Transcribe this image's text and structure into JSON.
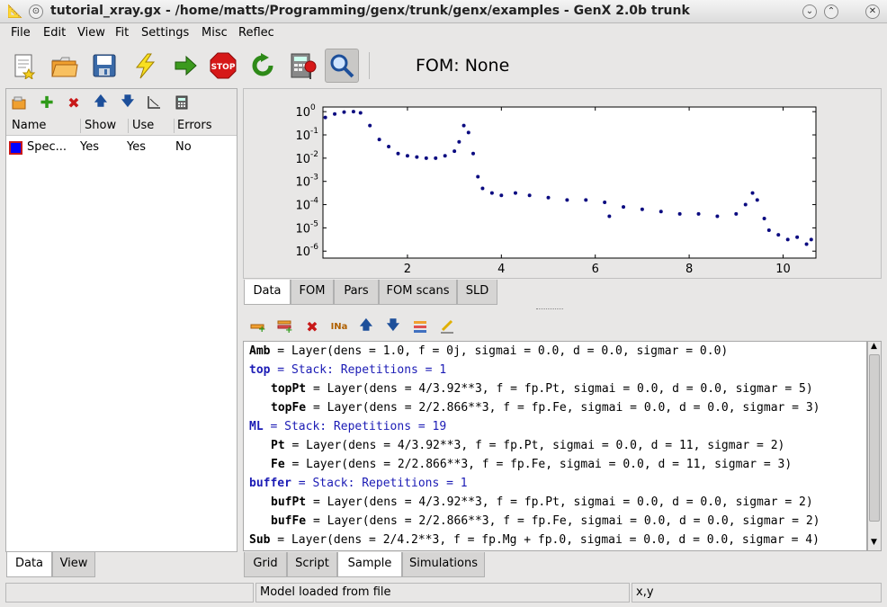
{
  "window": {
    "title": "tutorial_xray.gx - /home/matts/Programming/genx/trunk/genx/examples - GenX 2.0b trunk"
  },
  "menu": [
    "File",
    "Edit",
    "View",
    "Fit",
    "Settings",
    "Misc",
    "Reflec"
  ],
  "toolbar": {
    "icons": [
      "new-file-icon",
      "open-folder-icon",
      "save-icon",
      "lightning-icon",
      "arrow-right-icon",
      "stop-icon",
      "refresh-icon",
      "calculator-icon",
      "magnifier-icon"
    ],
    "fom_label": "FOM: None"
  },
  "data_panel": {
    "columns": [
      "Name",
      "Show",
      "Use",
      "Errors"
    ],
    "rows": [
      {
        "name": "Spec...",
        "show": "Yes",
        "use": "Yes",
        "errors": "No",
        "color": "#0000ff"
      }
    ],
    "tabs": [
      "Data",
      "View"
    ]
  },
  "plot": {
    "ytick_labels": [
      "10",
      "10",
      "10",
      "10",
      "10",
      "10",
      "10"
    ],
    "ytick_exps": [
      "0",
      "-1",
      "-2",
      "-3",
      "-4",
      "-5",
      "-6"
    ],
    "xtick_labels": [
      "2",
      "4",
      "6",
      "8",
      "10"
    ],
    "tabs": [
      "Data",
      "FOM",
      "Pars",
      "FOM scans",
      "SLD"
    ]
  },
  "chart_data": {
    "type": "scatter",
    "xlim": [
      0.2,
      10.7
    ],
    "ylim_log10": [
      -6.3,
      0.2
    ],
    "y_scale": "log",
    "x": [
      0.25,
      0.45,
      0.65,
      0.85,
      1.0,
      1.2,
      1.4,
      1.6,
      1.8,
      2.0,
      2.2,
      2.4,
      2.6,
      2.8,
      3.0,
      3.1,
      3.2,
      3.3,
      3.4,
      3.5,
      3.6,
      3.8,
      4.0,
      4.3,
      4.6,
      5.0,
      5.4,
      5.8,
      6.2,
      6.3,
      6.6,
      7.0,
      7.4,
      7.8,
      8.2,
      8.6,
      9.0,
      9.2,
      9.35,
      9.45,
      9.6,
      9.7,
      9.9,
      10.1,
      10.3,
      10.5,
      10.6
    ],
    "y_log10": [
      -0.25,
      -0.1,
      -0.02,
      0.0,
      -0.05,
      -0.6,
      -1.2,
      -1.5,
      -1.8,
      -1.9,
      -1.95,
      -2.0,
      -2.0,
      -1.9,
      -1.7,
      -1.3,
      -0.6,
      -0.9,
      -1.8,
      -2.8,
      -3.3,
      -3.5,
      -3.6,
      -3.5,
      -3.6,
      -3.7,
      -3.8,
      -3.8,
      -3.9,
      -4.5,
      -4.1,
      -4.2,
      -4.3,
      -4.4,
      -4.4,
      -4.5,
      -4.4,
      -4.0,
      -3.5,
      -3.8,
      -4.6,
      -5.1,
      -5.3,
      -5.5,
      -5.4,
      -5.7,
      -5.5
    ]
  },
  "script": {
    "lines": [
      {
        "indent": 0,
        "name": "Amb",
        "rest": " = Layer(dens = 1.0, f = 0j, sigmai = 0.0, d = 0.0, sigmar = 0.0)",
        "blue": false
      },
      {
        "indent": 0,
        "name": "top",
        "rest": " = Stack: Repetitions = 1",
        "blue": true
      },
      {
        "indent": 1,
        "name": "topPt",
        "rest": " = Layer(dens = 4/3.92**3, f = fp.Pt, sigmai = 0.0, d = 0.0, sigmar = 5)",
        "blue": false
      },
      {
        "indent": 1,
        "name": "topFe",
        "rest": " = Layer(dens = 2/2.866**3, f = fp.Fe, sigmai = 0.0, d = 0.0, sigmar = 3)",
        "blue": false
      },
      {
        "indent": 0,
        "name": "ML",
        "rest": " = Stack: Repetitions = 19",
        "blue": true
      },
      {
        "indent": 1,
        "name": "Pt",
        "rest": " = Layer(dens = 4/3.92**3, f = fp.Pt, sigmai = 0.0, d = 11, sigmar = 2)",
        "blue": false
      },
      {
        "indent": 1,
        "name": "Fe",
        "rest": " = Layer(dens = 2/2.866**3, f = fp.Fe, sigmai = 0.0, d = 11, sigmar = 3)",
        "blue": false
      },
      {
        "indent": 0,
        "name": "buffer",
        "rest": " = Stack: Repetitions = 1",
        "blue": true
      },
      {
        "indent": 1,
        "name": "bufPt",
        "rest": " = Layer(dens = 4/3.92**3, f = fp.Pt, sigmai = 0.0, d = 0.0, sigmar = 2)",
        "blue": false
      },
      {
        "indent": 1,
        "name": "bufFe",
        "rest": " = Layer(dens = 2/2.866**3, f = fp.Fe, sigmai = 0.0, d = 0.0, sigmar = 2)",
        "blue": false
      },
      {
        "indent": 0,
        "name": "Sub",
        "rest": " = Layer(dens = 2/4.2**3, f = fp.Mg + fp.0, sigmai = 0.0, d = 0.0, sigmar = 4)",
        "blue": false
      }
    ],
    "tabs": [
      "Grid",
      "Script",
      "Sample",
      "Simulations"
    ]
  },
  "status": {
    "left": "",
    "message": "Model loaded from file",
    "coords": "x,y"
  }
}
